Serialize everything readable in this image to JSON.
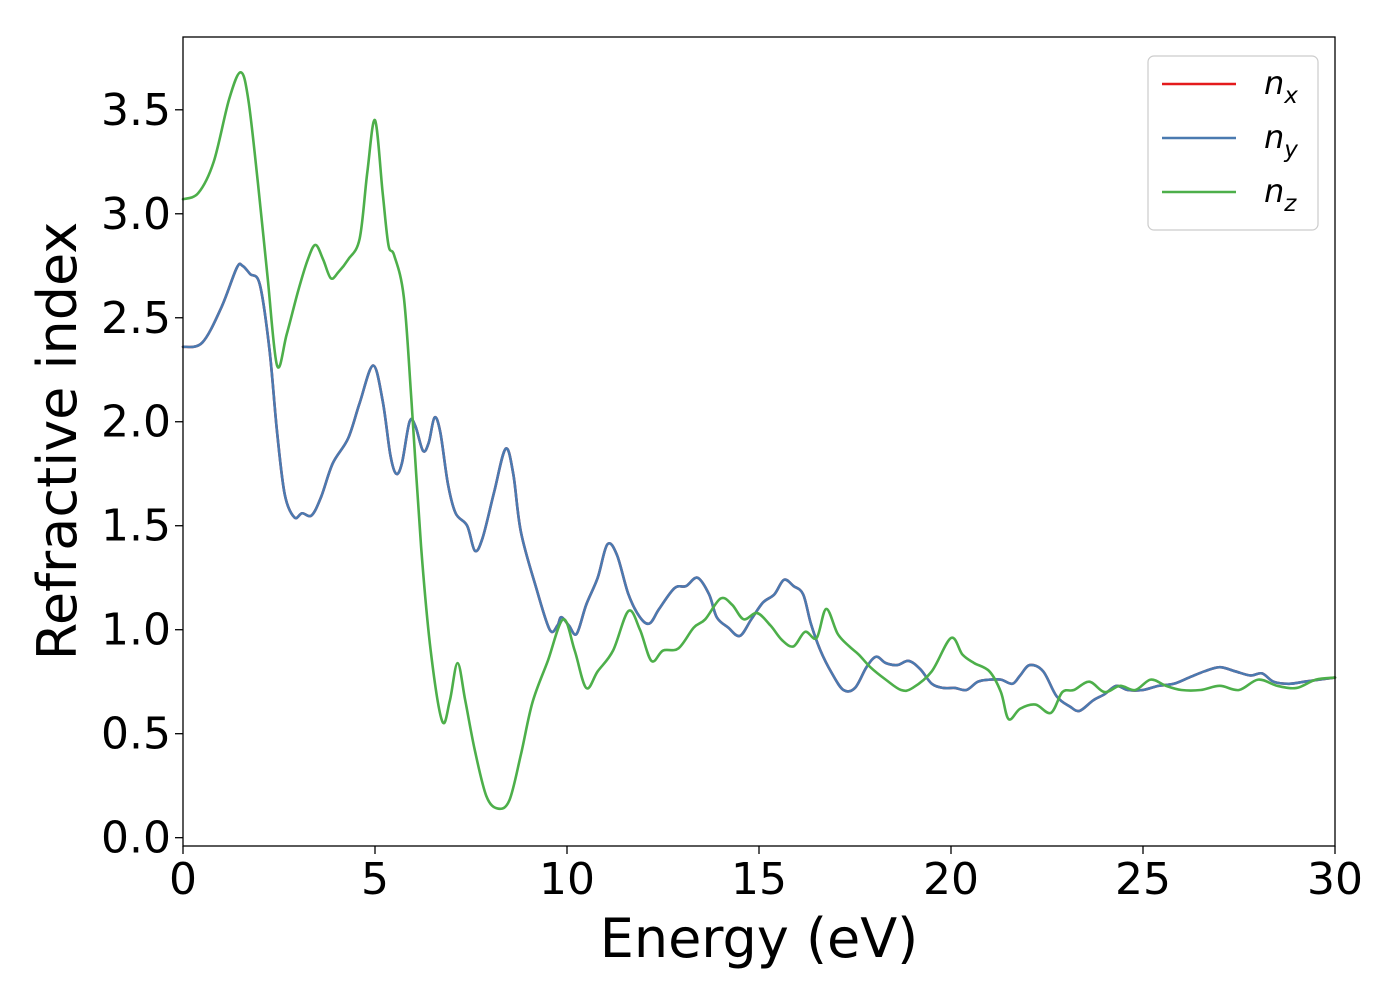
{
  "chart_data": {
    "type": "line",
    "xlabel": "Energy (eV)",
    "ylabel": "Refractive index",
    "xlim": [
      0,
      30
    ],
    "ylim": [
      -0.04,
      3.85
    ],
    "xticks": [
      0,
      5,
      10,
      15,
      20,
      25,
      30
    ],
    "xtick_labels": [
      "0",
      "5",
      "10",
      "15",
      "20",
      "25",
      "30"
    ],
    "yticks": [
      0.0,
      0.5,
      1.0,
      1.5,
      2.0,
      2.5,
      3.0,
      3.5
    ],
    "ytick_labels": [
      "0.0",
      "0.5",
      "1.0",
      "1.5",
      "2.0",
      "2.5",
      "3.0",
      "3.5"
    ],
    "grid": false,
    "legend_position": "top-right",
    "series": [
      {
        "name": "n_x",
        "label_base": "n",
        "label_sub": "x",
        "color": "#e41a1c",
        "points": [
          [
            0,
            2.36
          ],
          [
            0.5,
            2.38
          ],
          [
            1.0,
            2.55
          ],
          [
            1.4,
            2.74
          ],
          [
            1.55,
            2.75
          ],
          [
            1.75,
            2.71
          ],
          [
            2.0,
            2.66
          ],
          [
            2.25,
            2.35
          ],
          [
            2.45,
            1.95
          ],
          [
            2.65,
            1.65
          ],
          [
            2.9,
            1.54
          ],
          [
            3.1,
            1.56
          ],
          [
            3.35,
            1.55
          ],
          [
            3.6,
            1.64
          ],
          [
            3.9,
            1.8
          ],
          [
            4.3,
            1.92
          ],
          [
            4.6,
            2.09
          ],
          [
            4.95,
            2.27
          ],
          [
            5.2,
            2.1
          ],
          [
            5.4,
            1.84
          ],
          [
            5.55,
            1.75
          ],
          [
            5.7,
            1.8
          ],
          [
            5.9,
            2.0
          ],
          [
            6.05,
            1.98
          ],
          [
            6.25,
            1.86
          ],
          [
            6.4,
            1.9
          ],
          [
            6.55,
            2.02
          ],
          [
            6.7,
            1.95
          ],
          [
            6.9,
            1.7
          ],
          [
            7.1,
            1.56
          ],
          [
            7.4,
            1.5
          ],
          [
            7.6,
            1.38
          ],
          [
            7.8,
            1.44
          ],
          [
            8.1,
            1.66
          ],
          [
            8.4,
            1.87
          ],
          [
            8.6,
            1.75
          ],
          [
            8.8,
            1.47
          ],
          [
            9.2,
            1.2
          ],
          [
            9.55,
            1.0
          ],
          [
            9.75,
            1.02
          ],
          [
            9.85,
            1.06
          ],
          [
            10.05,
            1.02
          ],
          [
            10.25,
            0.98
          ],
          [
            10.5,
            1.12
          ],
          [
            10.8,
            1.25
          ],
          [
            11.05,
            1.41
          ],
          [
            11.3,
            1.36
          ],
          [
            11.6,
            1.17
          ],
          [
            11.9,
            1.06
          ],
          [
            12.15,
            1.03
          ],
          [
            12.4,
            1.1
          ],
          [
            12.8,
            1.2
          ],
          [
            13.1,
            1.21
          ],
          [
            13.4,
            1.25
          ],
          [
            13.7,
            1.17
          ],
          [
            13.9,
            1.06
          ],
          [
            14.2,
            1.01
          ],
          [
            14.5,
            0.97
          ],
          [
            14.8,
            1.05
          ],
          [
            15.1,
            1.13
          ],
          [
            15.4,
            1.17
          ],
          [
            15.65,
            1.24
          ],
          [
            15.9,
            1.21
          ],
          [
            16.15,
            1.17
          ],
          [
            16.35,
            1.03
          ],
          [
            16.6,
            0.9
          ],
          [
            16.9,
            0.79
          ],
          [
            17.2,
            0.71
          ],
          [
            17.5,
            0.72
          ],
          [
            17.8,
            0.82
          ],
          [
            18.05,
            0.87
          ],
          [
            18.3,
            0.84
          ],
          [
            18.6,
            0.83
          ],
          [
            18.9,
            0.85
          ],
          [
            19.2,
            0.81
          ],
          [
            19.5,
            0.74
          ],
          [
            19.8,
            0.72
          ],
          [
            20.1,
            0.72
          ],
          [
            20.4,
            0.71
          ],
          [
            20.7,
            0.75
          ],
          [
            21.0,
            0.76
          ],
          [
            21.3,
            0.76
          ],
          [
            21.6,
            0.74
          ],
          [
            21.8,
            0.78
          ],
          [
            22.05,
            0.83
          ],
          [
            22.4,
            0.8
          ],
          [
            22.75,
            0.68
          ],
          [
            23.1,
            0.63
          ],
          [
            23.35,
            0.61
          ],
          [
            23.7,
            0.66
          ],
          [
            24.0,
            0.69
          ],
          [
            24.3,
            0.73
          ],
          [
            24.6,
            0.71
          ],
          [
            25.0,
            0.71
          ],
          [
            25.4,
            0.73
          ],
          [
            25.8,
            0.74
          ],
          [
            26.2,
            0.77
          ],
          [
            26.6,
            0.8
          ],
          [
            27.0,
            0.82
          ],
          [
            27.4,
            0.8
          ],
          [
            27.8,
            0.78
          ],
          [
            28.1,
            0.79
          ],
          [
            28.4,
            0.75
          ],
          [
            28.8,
            0.74
          ],
          [
            29.2,
            0.75
          ],
          [
            29.6,
            0.76
          ],
          [
            30.0,
            0.77
          ]
        ]
      },
      {
        "name": "n_y",
        "label_base": "n",
        "label_sub": "y",
        "color": "#4a7ab0",
        "points": [
          [
            0,
            2.36
          ],
          [
            0.5,
            2.38
          ],
          [
            1.0,
            2.55
          ],
          [
            1.4,
            2.74
          ],
          [
            1.55,
            2.75
          ],
          [
            1.75,
            2.71
          ],
          [
            2.0,
            2.66
          ],
          [
            2.25,
            2.35
          ],
          [
            2.45,
            1.95
          ],
          [
            2.65,
            1.65
          ],
          [
            2.9,
            1.54
          ],
          [
            3.1,
            1.56
          ],
          [
            3.35,
            1.55
          ],
          [
            3.6,
            1.64
          ],
          [
            3.9,
            1.8
          ],
          [
            4.3,
            1.92
          ],
          [
            4.6,
            2.09
          ],
          [
            4.95,
            2.27
          ],
          [
            5.2,
            2.1
          ],
          [
            5.4,
            1.84
          ],
          [
            5.55,
            1.75
          ],
          [
            5.7,
            1.8
          ],
          [
            5.9,
            2.0
          ],
          [
            6.05,
            1.98
          ],
          [
            6.25,
            1.86
          ],
          [
            6.4,
            1.9
          ],
          [
            6.55,
            2.02
          ],
          [
            6.7,
            1.95
          ],
          [
            6.9,
            1.7
          ],
          [
            7.1,
            1.56
          ],
          [
            7.4,
            1.5
          ],
          [
            7.6,
            1.38
          ],
          [
            7.8,
            1.44
          ],
          [
            8.1,
            1.66
          ],
          [
            8.4,
            1.87
          ],
          [
            8.6,
            1.75
          ],
          [
            8.8,
            1.47
          ],
          [
            9.2,
            1.2
          ],
          [
            9.55,
            1.0
          ],
          [
            9.75,
            1.02
          ],
          [
            9.85,
            1.06
          ],
          [
            10.05,
            1.02
          ],
          [
            10.25,
            0.98
          ],
          [
            10.5,
            1.12
          ],
          [
            10.8,
            1.25
          ],
          [
            11.05,
            1.41
          ],
          [
            11.3,
            1.36
          ],
          [
            11.6,
            1.17
          ],
          [
            11.9,
            1.06
          ],
          [
            12.15,
            1.03
          ],
          [
            12.4,
            1.1
          ],
          [
            12.8,
            1.2
          ],
          [
            13.1,
            1.21
          ],
          [
            13.4,
            1.25
          ],
          [
            13.7,
            1.17
          ],
          [
            13.9,
            1.06
          ],
          [
            14.2,
            1.01
          ],
          [
            14.5,
            0.97
          ],
          [
            14.8,
            1.05
          ],
          [
            15.1,
            1.13
          ],
          [
            15.4,
            1.17
          ],
          [
            15.65,
            1.24
          ],
          [
            15.9,
            1.21
          ],
          [
            16.15,
            1.17
          ],
          [
            16.35,
            1.03
          ],
          [
            16.6,
            0.9
          ],
          [
            16.9,
            0.79
          ],
          [
            17.2,
            0.71
          ],
          [
            17.5,
            0.72
          ],
          [
            17.8,
            0.82
          ],
          [
            18.05,
            0.87
          ],
          [
            18.3,
            0.84
          ],
          [
            18.6,
            0.83
          ],
          [
            18.9,
            0.85
          ],
          [
            19.2,
            0.81
          ],
          [
            19.5,
            0.74
          ],
          [
            19.8,
            0.72
          ],
          [
            20.1,
            0.72
          ],
          [
            20.4,
            0.71
          ],
          [
            20.7,
            0.75
          ],
          [
            21.0,
            0.76
          ],
          [
            21.3,
            0.76
          ],
          [
            21.6,
            0.74
          ],
          [
            21.8,
            0.78
          ],
          [
            22.05,
            0.83
          ],
          [
            22.4,
            0.8
          ],
          [
            22.75,
            0.68
          ],
          [
            23.1,
            0.63
          ],
          [
            23.35,
            0.61
          ],
          [
            23.7,
            0.66
          ],
          [
            24.0,
            0.69
          ],
          [
            24.3,
            0.73
          ],
          [
            24.6,
            0.71
          ],
          [
            25.0,
            0.71
          ],
          [
            25.4,
            0.73
          ],
          [
            25.8,
            0.74
          ],
          [
            26.2,
            0.77
          ],
          [
            26.6,
            0.8
          ],
          [
            27.0,
            0.82
          ],
          [
            27.4,
            0.8
          ],
          [
            27.8,
            0.78
          ],
          [
            28.1,
            0.79
          ],
          [
            28.4,
            0.75
          ],
          [
            28.8,
            0.74
          ],
          [
            29.2,
            0.75
          ],
          [
            29.6,
            0.76
          ],
          [
            30.0,
            0.77
          ]
        ]
      },
      {
        "name": "n_z",
        "label_base": "n",
        "label_sub": "z",
        "color": "#4daf4a",
        "points": [
          [
            0,
            3.07
          ],
          [
            0.4,
            3.1
          ],
          [
            0.8,
            3.25
          ],
          [
            1.2,
            3.55
          ],
          [
            1.5,
            3.68
          ],
          [
            1.7,
            3.55
          ],
          [
            1.95,
            3.15
          ],
          [
            2.2,
            2.7
          ],
          [
            2.45,
            2.27
          ],
          [
            2.7,
            2.42
          ],
          [
            3.0,
            2.63
          ],
          [
            3.25,
            2.78
          ],
          [
            3.45,
            2.85
          ],
          [
            3.65,
            2.78
          ],
          [
            3.85,
            2.69
          ],
          [
            4.05,
            2.72
          ],
          [
            4.3,
            2.78
          ],
          [
            4.6,
            2.88
          ],
          [
            4.8,
            3.2
          ],
          [
            5.0,
            3.45
          ],
          [
            5.2,
            3.1
          ],
          [
            5.35,
            2.85
          ],
          [
            5.5,
            2.8
          ],
          [
            5.75,
            2.6
          ],
          [
            5.95,
            2.1
          ],
          [
            6.2,
            1.4
          ],
          [
            6.45,
            0.9
          ],
          [
            6.75,
            0.56
          ],
          [
            6.95,
            0.66
          ],
          [
            7.15,
            0.84
          ],
          [
            7.35,
            0.66
          ],
          [
            7.6,
            0.42
          ],
          [
            7.9,
            0.2
          ],
          [
            8.2,
            0.14
          ],
          [
            8.5,
            0.18
          ],
          [
            8.8,
            0.4
          ],
          [
            9.1,
            0.65
          ],
          [
            9.5,
            0.85
          ],
          [
            9.9,
            1.05
          ],
          [
            10.2,
            0.9
          ],
          [
            10.5,
            0.72
          ],
          [
            10.8,
            0.8
          ],
          [
            11.2,
            0.9
          ],
          [
            11.6,
            1.09
          ],
          [
            11.9,
            1.0
          ],
          [
            12.2,
            0.85
          ],
          [
            12.5,
            0.9
          ],
          [
            12.9,
            0.91
          ],
          [
            13.3,
            1.01
          ],
          [
            13.6,
            1.05
          ],
          [
            14.0,
            1.15
          ],
          [
            14.3,
            1.12
          ],
          [
            14.6,
            1.05
          ],
          [
            14.95,
            1.08
          ],
          [
            15.3,
            1.02
          ],
          [
            15.6,
            0.95
          ],
          [
            15.9,
            0.92
          ],
          [
            16.2,
            0.99
          ],
          [
            16.5,
            0.96
          ],
          [
            16.75,
            1.1
          ],
          [
            17.05,
            0.98
          ],
          [
            17.35,
            0.92
          ],
          [
            17.6,
            0.88
          ],
          [
            17.9,
            0.82
          ],
          [
            18.3,
            0.76
          ],
          [
            18.7,
            0.71
          ],
          [
            19.0,
            0.72
          ],
          [
            19.5,
            0.8
          ],
          [
            20.0,
            0.96
          ],
          [
            20.3,
            0.88
          ],
          [
            20.6,
            0.84
          ],
          [
            21.0,
            0.8
          ],
          [
            21.3,
            0.7
          ],
          [
            21.5,
            0.57
          ],
          [
            21.8,
            0.62
          ],
          [
            22.2,
            0.64
          ],
          [
            22.6,
            0.6
          ],
          [
            22.9,
            0.7
          ],
          [
            23.2,
            0.71
          ],
          [
            23.6,
            0.75
          ],
          [
            24.0,
            0.7
          ],
          [
            24.4,
            0.73
          ],
          [
            24.8,
            0.71
          ],
          [
            25.2,
            0.76
          ],
          [
            25.6,
            0.73
          ],
          [
            26.0,
            0.71
          ],
          [
            26.5,
            0.71
          ],
          [
            27.0,
            0.73
          ],
          [
            27.5,
            0.71
          ],
          [
            28.0,
            0.76
          ],
          [
            28.5,
            0.73
          ],
          [
            29.0,
            0.72
          ],
          [
            29.5,
            0.76
          ],
          [
            30.0,
            0.77
          ]
        ]
      }
    ]
  }
}
